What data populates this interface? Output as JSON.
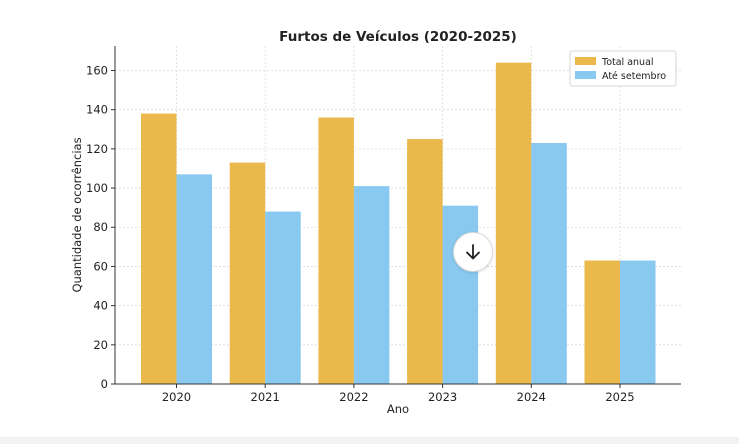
{
  "chart_data": {
    "type": "bar",
    "title": "Furtos de Veículos (2020-2025)",
    "xlabel": "Ano",
    "ylabel": "Quantidade de ocorrências",
    "categories": [
      "2020",
      "2021",
      "2022",
      "2023",
      "2024",
      "2025"
    ],
    "series": [
      {
        "name": "Total anual",
        "color": "#ebb84b",
        "values": [
          138,
          113,
          136,
          125,
          164,
          63
        ]
      },
      {
        "name": "Até setembro",
        "color": "#89c9ef",
        "values": [
          107,
          88,
          101,
          91,
          123,
          63
        ]
      }
    ],
    "ylim": [
      0,
      172.5
    ],
    "yticks": [
      0,
      20,
      40,
      60,
      80,
      100,
      120,
      140,
      160
    ],
    "grid": true,
    "legend_position": "top-right"
  },
  "controls": {
    "scroll_down_icon": "arrow-down-icon"
  }
}
